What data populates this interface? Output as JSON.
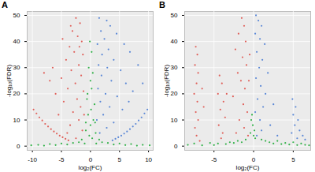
{
  "chart_data": [
    {
      "type": "scatter",
      "title": "A",
      "x_label": "log₂(FC)",
      "y_label": "-log₁₀(FDR)",
      "xlim": [
        -10.9,
        10.8
      ],
      "ylim": [
        -1.6,
        51.5
      ],
      "xticks": [
        -10,
        -5,
        0,
        5,
        10
      ],
      "yticks": [
        0,
        10,
        20,
        30,
        40,
        50
      ],
      "grid": true,
      "series": [
        {
          "color": "#33b24a",
          "x": [
            0,
            -0.3,
            0.4,
            0.2,
            -0.6,
            0.7,
            -0.4,
            0.5,
            0,
            -0.8,
            0.9,
            -0.2,
            0.3,
            -0.5,
            0.1,
            -0.1,
            0.2,
            -10.2,
            -9,
            -8,
            -7,
            -6,
            -5,
            -4,
            -3,
            -2,
            -1.5,
            -1,
            1,
            1.5,
            2,
            3,
            4,
            5,
            6,
            7,
            8,
            9,
            10.2,
            -0.8,
            0.8
          ],
          "y": [
            25,
            30,
            28,
            22,
            18,
            16,
            12,
            10,
            8,
            6,
            5,
            4,
            3,
            20,
            14,
            40,
            36,
            0.3,
            0.5,
            0.2,
            0.8,
            0.4,
            1,
            0.6,
            1.2,
            1.5,
            2.5,
            1,
            1,
            2.5,
            1.5,
            1.2,
            0.6,
            1,
            0.4,
            0.8,
            0.2,
            0.5,
            0.3,
            9,
            9
          ]
        },
        {
          "color": "#e0605a",
          "x": [
            -9.8,
            -9.3,
            -8.8,
            -8.3,
            -7.8,
            -7.3,
            -6.8,
            -6.3,
            -5.8,
            -5.3,
            -4.8,
            -4.3,
            -3.8,
            -2.5,
            -1.8,
            -3.1,
            -2.2,
            -1.5,
            -3.6,
            -2.8,
            -1.3,
            -4.2,
            -2.0,
            -3.3,
            -1.6,
            -5.0,
            -2.6,
            -3.9,
            -1.2,
            -6.0,
            -2.3,
            -4.6,
            -1.7,
            -3.0,
            -7.0,
            -5.5,
            -2.0,
            -3.5,
            -1.4,
            -4.0,
            -2.5,
            -6.5,
            -8.0,
            -1.1,
            -1.9,
            -3.4,
            -4.8
          ],
          "y": [
            14,
            12.5,
            11,
            9.8,
            8.5,
            7.5,
            6.5,
            5.6,
            4.8,
            4,
            3.4,
            2.8,
            2.2,
            49,
            47,
            44,
            42,
            40,
            38,
            36,
            35,
            33,
            31,
            29,
            27,
            26,
            24,
            22,
            21,
            20,
            18,
            17,
            15,
            13,
            25,
            12,
            10,
            8,
            6,
            5,
            3,
            30,
            28,
            12,
            38,
            46,
            41
          ]
        },
        {
          "color": "#5a87d6",
          "x": [
            3.8,
            4.3,
            4.8,
            5.3,
            5.8,
            6.3,
            6.8,
            7.3,
            7.8,
            8.3,
            8.8,
            9.3,
            9.8,
            1.5,
            2.8,
            3.4,
            1.8,
            4.5,
            2.4,
            1.2,
            5.8,
            3.1,
            2.0,
            6.8,
            4.0,
            1.4,
            2.9,
            5.2,
            8.2,
            1.9,
            3.6,
            6.1,
            1.3,
            2.6,
            4.6,
            7.3,
            1.7,
            3.3,
            5.5,
            2.2,
            1.1,
            4.0,
            2.8,
            1.6,
            6.6,
            9.0
          ],
          "y": [
            2.2,
            2.8,
            3.4,
            4,
            4.8,
            5.6,
            6.5,
            7.5,
            8.5,
            9.8,
            11,
            12.5,
            14,
            49,
            48,
            46,
            44,
            43,
            41,
            39,
            39,
            37,
            35,
            36,
            33,
            31,
            30,
            29,
            31,
            27,
            25,
            24,
            22,
            20,
            19,
            21,
            17,
            15,
            14,
            12,
            10,
            9,
            7,
            5,
            17,
            24
          ]
        }
      ]
    },
    {
      "type": "scatter",
      "title": "B",
      "x_label": "log₂(FC)",
      "y_label": "-log₁₀(FDR)",
      "xlim": [
        -8.7,
        7.2
      ],
      "ylim": [
        -1.6,
        51.5
      ],
      "xticks": [
        -5,
        0,
        5
      ],
      "yticks": [
        0,
        10,
        20,
        30,
        40,
        50
      ],
      "grid": true,
      "series": [
        {
          "color": "#33b24a",
          "x": [
            -0.3,
            -0.1,
            0.1,
            -0.4,
            0,
            -0.2,
            0.2,
            -8.3,
            -7.5,
            -6.5,
            -5.5,
            -5,
            -4.5,
            -3.5,
            -3,
            -2.5,
            -2,
            -1.5,
            -1,
            1,
            1.5,
            2,
            2.5,
            3,
            3.5,
            4,
            4.5,
            5,
            5.5,
            6,
            6.5,
            7
          ],
          "y": [
            10,
            8,
            6,
            5,
            4,
            12,
            3,
            0.5,
            1,
            0.3,
            1.2,
            0.4,
            1,
            0.8,
            1.5,
            1.2,
            2,
            1.5,
            2.5,
            2.5,
            2,
            1.5,
            1,
            2,
            0.8,
            1.2,
            0.6,
            1.5,
            0.4,
            1,
            0.5,
            0.3
          ]
        },
        {
          "color": "#e0605a",
          "x": [
            -7.3,
            -7.1,
            -7.4,
            -7.0,
            -7.2,
            -7.5,
            -7.1,
            -7.3,
            -7.0,
            -7.4,
            -7.2,
            -6.8,
            -6.5,
            -6.3,
            -4.3,
            -4.0,
            -4.5,
            -3.8,
            -4.2,
            -3.6,
            -4.4,
            -3.9,
            -4.1,
            -3.4,
            -1.5,
            -1.2,
            -1.9,
            -1.0,
            -2.3,
            -1.4,
            -0.9,
            -2.0,
            -1.6,
            -1.1,
            -2.6,
            -1.3,
            -0.8,
            -1.8,
            -1.2,
            -2.2,
            -0.7,
            -0.6,
            -0.5
          ],
          "y": [
            38,
            35,
            31,
            28,
            24,
            20,
            17,
            13,
            10,
            7,
            4,
            2,
            22,
            15,
            27,
            24,
            20,
            17,
            14,
            11,
            8,
            5,
            3,
            20,
            49,
            46,
            43,
            40,
            37,
            34,
            31,
            28,
            25,
            22,
            19,
            16,
            13,
            10,
            7,
            5,
            4,
            25,
            35
          ]
        },
        {
          "color": "#5a87d6",
          "x": [
            0.3,
            0.6,
            1.0,
            0.2,
            0.8,
            1.4,
            0.4,
            1.1,
            0.7,
            1.8,
            0.3,
            0.9,
            1.5,
            0.5,
            1.2,
            0.2,
            0.8,
            2.1,
            1.0,
            0.4,
            2.5,
            3.0,
            4.9,
            5.3,
            5.0,
            5.6,
            5.2,
            5.8,
            4.8,
            5.5,
            6.2,
            6.5
          ],
          "y": [
            50,
            48,
            46,
            43,
            41,
            39,
            36,
            33,
            30,
            28,
            26,
            23,
            20,
            18,
            15,
            13,
            10,
            8,
            6,
            4,
            16,
            4,
            18,
            15,
            12,
            10,
            8,
            6,
            5,
            3,
            4,
            2.5
          ]
        }
      ]
    }
  ]
}
